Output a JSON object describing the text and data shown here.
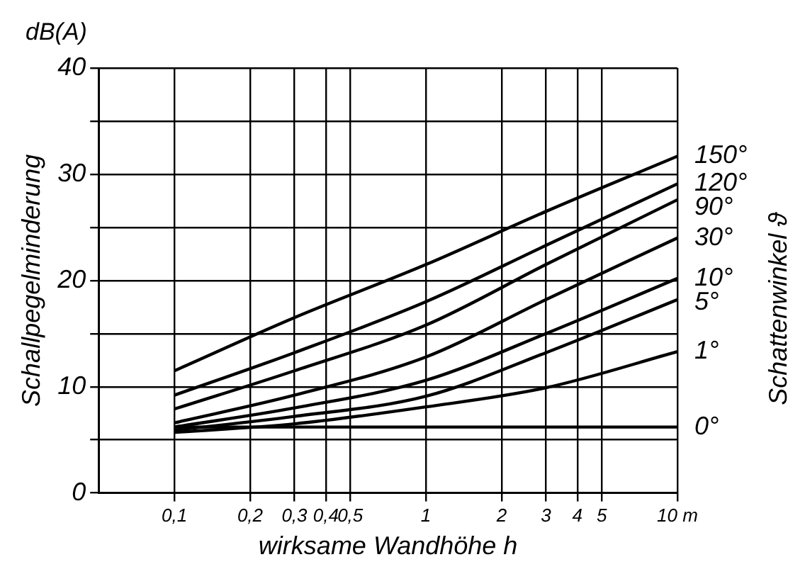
{
  "chart_data": {
    "type": "line",
    "xlabel": "wirksame Wandhöhe h",
    "ylabel": "Schallpegelminderung",
    "y2label": "Schattenwinkel ϑ",
    "annotations": [
      "dB(A)"
    ],
    "x": [
      0.1,
      0.3,
      1,
      3,
      10
    ],
    "series": [
      {
        "name": "150°",
        "color": "#000000",
        "values": [
          11.5,
          16.5,
          21.5,
          26.5,
          31.7
        ]
      },
      {
        "name": "120°",
        "color": "#000000",
        "values": [
          9.2,
          13.2,
          18,
          23.3,
          29.1
        ]
      },
      {
        "name": "90°",
        "color": "#000000",
        "values": [
          7.9,
          11.5,
          15.8,
          21.5,
          27.6
        ]
      },
      {
        "name": "30°",
        "color": "#000000",
        "values": [
          6.6,
          9.2,
          12.8,
          18.2,
          24
        ]
      },
      {
        "name": "10°",
        "color": "#000000",
        "values": [
          6.2,
          8,
          10.6,
          15,
          20.2
        ]
      },
      {
        "name": "5°",
        "color": "#000000",
        "values": [
          5.9,
          7.2,
          9.1,
          13.2,
          18.2
        ]
      },
      {
        "name": "1°",
        "color": "#000000",
        "values": [
          5.7,
          6.5,
          8.1,
          9.9,
          13.3
        ]
      },
      {
        "name": "0°",
        "color": "#000000",
        "values": [
          6.2,
          6.2,
          6.2,
          6.2,
          6.2
        ]
      }
    ],
    "log": "x",
    "xlim": [
      0.05,
      10
    ],
    "ylim": [
      0,
      40
    ],
    "xticks": [
      {
        "value": 0.1,
        "label": "0,1"
      },
      {
        "value": 0.2,
        "label": "0,2"
      },
      {
        "value": 0.3,
        "label": "0,3"
      },
      {
        "value": 0.4,
        "label": "0,4"
      },
      {
        "value": 0.5,
        "label": "0,5"
      },
      1,
      2,
      3,
      4,
      5,
      {
        "value": 10,
        "label": "10 m"
      }
    ],
    "yticks": [
      0,
      {
        "value": 5,
        "label": null
      },
      10,
      {
        "value": 15,
        "label": null
      },
      20,
      {
        "value": 25,
        "label": null
      },
      30,
      {
        "value": 35,
        "label": null
      },
      40
    ],
    "grid": true,
    "legend": false,
    "marker": "none",
    "line_style": "solid"
  }
}
